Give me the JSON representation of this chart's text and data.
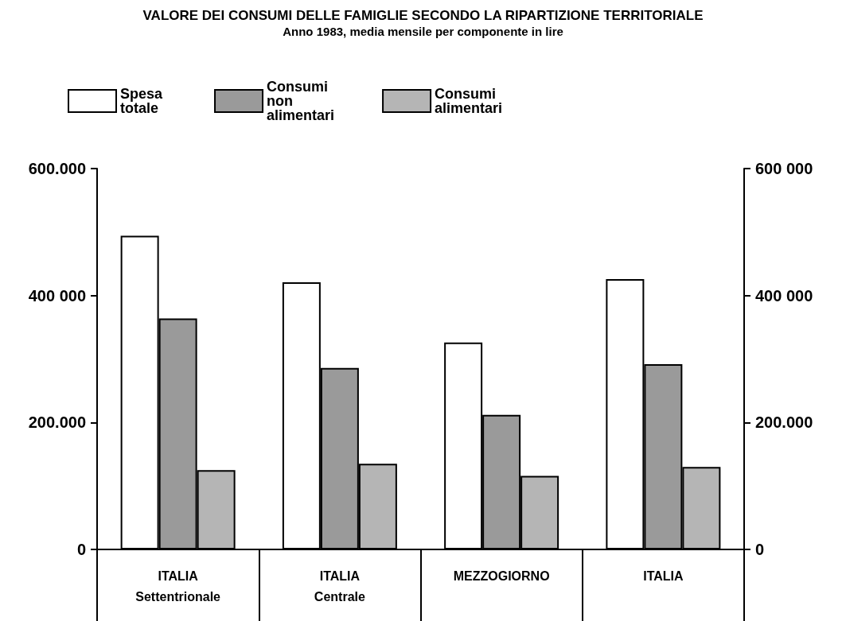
{
  "chart_data": {
    "type": "bar",
    "title": "VALORE DEI CONSUMI DELLE FAMIGLIE SECONDO LA RIPARTIZIONE TERRITORIALE",
    "subtitle": "Anno 1983, media mensile per componente in lire",
    "categories": [
      "ITALIA\nSettentrionale",
      "ITALIA\nCentrale",
      "MEZZOGIORNO",
      "ITALIA"
    ],
    "series": [
      {
        "name": "Spesa totale",
        "color": "#ffffff",
        "values": [
          494000,
          421000,
          326000,
          426000
        ]
      },
      {
        "name": "Consumi non alimentari",
        "color": "#9a9a9a",
        "values": [
          364000,
          286000,
          212000,
          292000
        ]
      },
      {
        "name": "Consumi alimentari",
        "color": "#b5b5b5",
        "values": [
          125000,
          135000,
          116000,
          130000
        ]
      }
    ],
    "ylim": [
      0,
      600000
    ],
    "yticks": [
      {
        "value": 0,
        "label": "0"
      },
      {
        "value": 200000,
        "label": "200.000"
      },
      {
        "value": 400000,
        "label": "400 000"
      },
      {
        "value": 600000,
        "label": "600.000"
      }
    ],
    "y2lim": [
      0,
      600000
    ],
    "y2ticks": [
      {
        "value": 0,
        "label": "0"
      },
      {
        "value": 200000,
        "label": "200.000"
      },
      {
        "value": 400000,
        "label": "400 000"
      },
      {
        "value": 600000,
        "label": "600 000"
      }
    ],
    "legend": "top left",
    "grid": false
  }
}
